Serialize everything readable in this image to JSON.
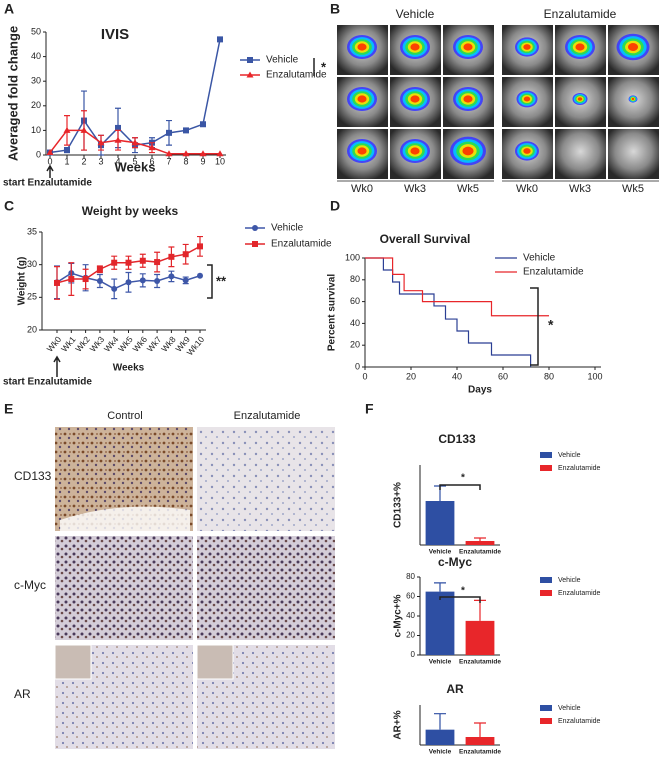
{
  "figure": {
    "letters": [
      "A",
      "B",
      "C",
      "D",
      "E",
      "F"
    ],
    "imaging": {
      "groups": [
        "Vehicle",
        "Enzalutamide"
      ],
      "weeks": [
        "Wk0",
        "Wk3",
        "Wk5"
      ]
    },
    "histology": {
      "columns": [
        "Control",
        "Enzalutamide"
      ],
      "rows": [
        "CD133",
        "c-Myc",
        "AR"
      ]
    }
  },
  "chart_data": [
    {
      "type": "line",
      "title": "IVIS",
      "xlabel": "Weeks",
      "ylabel": "Averaged fold change",
      "x": [
        0,
        1,
        2,
        3,
        4,
        5,
        6,
        7,
        8,
        9,
        10
      ],
      "xlim": [
        0,
        10
      ],
      "xticks": [
        0,
        1,
        2,
        3,
        4,
        5,
        6,
        7,
        8,
        9,
        10
      ],
      "ylim": [
        0,
        50
      ],
      "yticks": [
        0,
        10,
        20,
        30,
        40,
        50
      ],
      "series": [
        {
          "name": "Vehicle",
          "color": "#3a56a5",
          "marker": "square",
          "values": [
            1,
            2,
            14,
            4,
            11,
            4,
            5,
            9,
            10,
            12.5,
            47
          ],
          "errors": [
            null,
            1,
            12,
            4,
            8,
            3,
            2,
            5,
            null,
            null,
            null
          ]
        },
        {
          "name": "Enzalutamide",
          "color": "#e8262a",
          "marker": "triangle",
          "values": [
            1,
            10,
            10,
            5,
            6,
            5,
            3,
            0.5,
            0.5,
            0.5,
            0.5
          ],
          "errors": [
            null,
            6,
            8,
            3,
            4,
            2,
            2,
            null,
            null,
            null,
            null
          ]
        }
      ],
      "annotations": [
        "*",
        "start Enzalutamide"
      ]
    },
    {
      "type": "line",
      "title": "Weight by weeks",
      "xlabel": "Weeks",
      "ylabel": "Weight (g)",
      "categories": [
        "Wk0",
        "Wk1",
        "Wk2",
        "Wk3",
        "Wk4",
        "Wk5",
        "Wk6",
        "Wk7",
        "Wk8",
        "Wk9",
        "Wk10"
      ],
      "ylim": [
        20,
        35
      ],
      "yticks": [
        20,
        25,
        30,
        35
      ],
      "series": [
        {
          "name": "Vehicle",
          "color": "#3e57a8",
          "marker": "circle",
          "values": [
            27.3,
            28.7,
            28,
            27.5,
            26.3,
            27.3,
            27.6,
            27.5,
            28.2,
            27.6,
            28.3
          ],
          "errors": [
            2.5,
            1.5,
            2,
            1,
            1.5,
            1.5,
            1,
            1,
            0.8,
            0.5,
            null
          ]
        },
        {
          "name": "Enzalutamide",
          "color": "#e2262b",
          "marker": "square",
          "values": [
            27.2,
            27.8,
            27.8,
            29.3,
            30.3,
            30.3,
            30.6,
            30.4,
            31.2,
            31.6,
            32.8
          ],
          "errors": [
            2.5,
            2.5,
            1.5,
            0.5,
            1,
            1,
            1,
            1.5,
            1.5,
            1.5,
            1.5
          ]
        }
      ],
      "annotations": [
        "**",
        "start Enzalutamide"
      ]
    },
    {
      "type": "step",
      "title": "Overall Survival",
      "xlabel": "Days",
      "ylabel": "Percent survival",
      "xlim": [
        0,
        100
      ],
      "xticks": [
        0,
        20,
        40,
        60,
        80,
        100
      ],
      "ylim": [
        0,
        100
      ],
      "yticks": [
        0,
        20,
        40,
        60,
        80,
        100
      ],
      "series": [
        {
          "name": "Vehicle",
          "color": "#2b3f94",
          "x": [
            0,
            8,
            12,
            15,
            30,
            35,
            40,
            45,
            55,
            72
          ],
          "values": [
            100,
            89,
            78,
            67,
            56,
            44,
            33,
            22,
            11,
            0
          ]
        },
        {
          "name": "Enzalutamide",
          "color": "#e8262a",
          "x": [
            0,
            12,
            17,
            25,
            55,
            80
          ],
          "values": [
            100,
            85,
            70,
            60,
            47,
            47
          ]
        }
      ],
      "annotations": [
        "*"
      ]
    },
    {
      "type": "bar",
      "title": "CD133",
      "ylabel": "CD133+%",
      "categories": [
        "Vehicle",
        "Enzalutamide"
      ],
      "colors": [
        "#2e4fa3",
        "#e8262a"
      ],
      "values": [
        44,
        4
      ],
      "errors": [
        15,
        3
      ],
      "ylim": [
        0,
        80
      ],
      "annotations": [
        "*"
      ]
    },
    {
      "type": "bar",
      "title": "c-Myc",
      "ylabel": "c-Myc+%",
      "categories": [
        "Vehicle",
        "Enzalutamide"
      ],
      "colors": [
        "#2e4fa3",
        "#e8262a"
      ],
      "values": [
        65,
        35
      ],
      "errors": [
        9,
        21
      ],
      "ylim": [
        0,
        80
      ],
      "yticks": [
        0,
        20,
        40,
        60,
        80
      ],
      "annotations": [
        "*"
      ]
    },
    {
      "type": "bar",
      "title": "AR",
      "ylabel": "AR+%",
      "categories": [
        "Vehicle",
        "Enzalutamide"
      ],
      "colors": [
        "#2e4fa3",
        "#e8262a"
      ],
      "values": [
        23,
        12
      ],
      "errors": [
        24,
        21
      ],
      "ylim": [
        0,
        60
      ]
    }
  ]
}
